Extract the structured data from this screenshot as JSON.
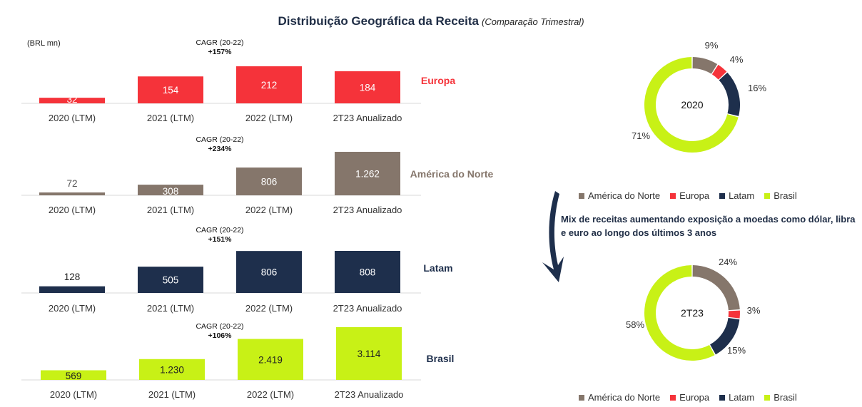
{
  "title": "Distribuição Geográfica da Receita",
  "subtitle": "(Comparação Trimestral)",
  "unit_label": "(BRL mn)",
  "note": "Mix de receitas aumentando exposição a moedas como dólar, libra e euro ao longo dos últimos 3 anos",
  "colors": {
    "europa": "#f5333a",
    "america_do_norte": "#85766b",
    "latam": "#1e2f4c",
    "brasil": "#c8f116"
  },
  "chart_data": [
    {
      "type": "bar",
      "region": "Europa",
      "categories": [
        "2020 (LTM)",
        "2021 (LTM)",
        "2022 (LTM)",
        "2T23 Anualizado"
      ],
      "values": [
        32,
        154,
        212,
        184
      ],
      "value_labels": [
        "32",
        "154",
        "212",
        "184"
      ],
      "cagr_label": "CAGR (20-22)",
      "cagr": "+157%",
      "color": "#f5333a"
    },
    {
      "type": "bar",
      "region": "América do Norte",
      "categories": [
        "2020 (LTM)",
        "2021 (LTM)",
        "2022 (LTM)",
        "2T23 Anualizado"
      ],
      "values": [
        72,
        308,
        806,
        1262
      ],
      "value_labels": [
        "72",
        "308",
        "806",
        "1.262"
      ],
      "cagr_label": "CAGR (20-22)",
      "cagr": "+234%",
      "color": "#85766b"
    },
    {
      "type": "bar",
      "region": "Latam",
      "categories": [
        "2020 (LTM)",
        "2021 (LTM)",
        "2022 (LTM)",
        "2T23 Anualizado"
      ],
      "values": [
        128,
        505,
        806,
        808
      ],
      "value_labels": [
        "128",
        "505",
        "806",
        "808"
      ],
      "cagr_label": "CAGR (20-22)",
      "cagr": "+151%",
      "color": "#1e2f4c"
    },
    {
      "type": "bar",
      "region": "Brasil",
      "categories": [
        "2020 (LTM)",
        "2021 (LTM)",
        "2022 (LTM)",
        "2T23 Anualizado"
      ],
      "values": [
        569,
        1230,
        2419,
        3114
      ],
      "value_labels": [
        "569",
        "1.230",
        "2.419",
        "3.114"
      ],
      "cagr_label": "CAGR (20-22)",
      "cagr": "+106%",
      "color": "#c8f116"
    },
    {
      "type": "pie",
      "center_label": "2020",
      "slices": [
        {
          "name": "América do Norte",
          "value": 9,
          "label": "9%"
        },
        {
          "name": "Europa",
          "value": 4,
          "label": "4%"
        },
        {
          "name": "Latam",
          "value": 16,
          "label": "16%"
        },
        {
          "name": "Brasil",
          "value": 71,
          "label": "71%"
        }
      ]
    },
    {
      "type": "pie",
      "center_label": "2T23",
      "slices": [
        {
          "name": "América do Norte",
          "value": 24,
          "label": "24%"
        },
        {
          "name": "Europa",
          "value": 3,
          "label": "3%"
        },
        {
          "name": "Latam",
          "value": 15,
          "label": "15%"
        },
        {
          "name": "Brasil",
          "value": 58,
          "label": "58%"
        }
      ]
    }
  ],
  "legend": [
    "América do Norte",
    "Europa",
    "Latam",
    "Brasil"
  ]
}
